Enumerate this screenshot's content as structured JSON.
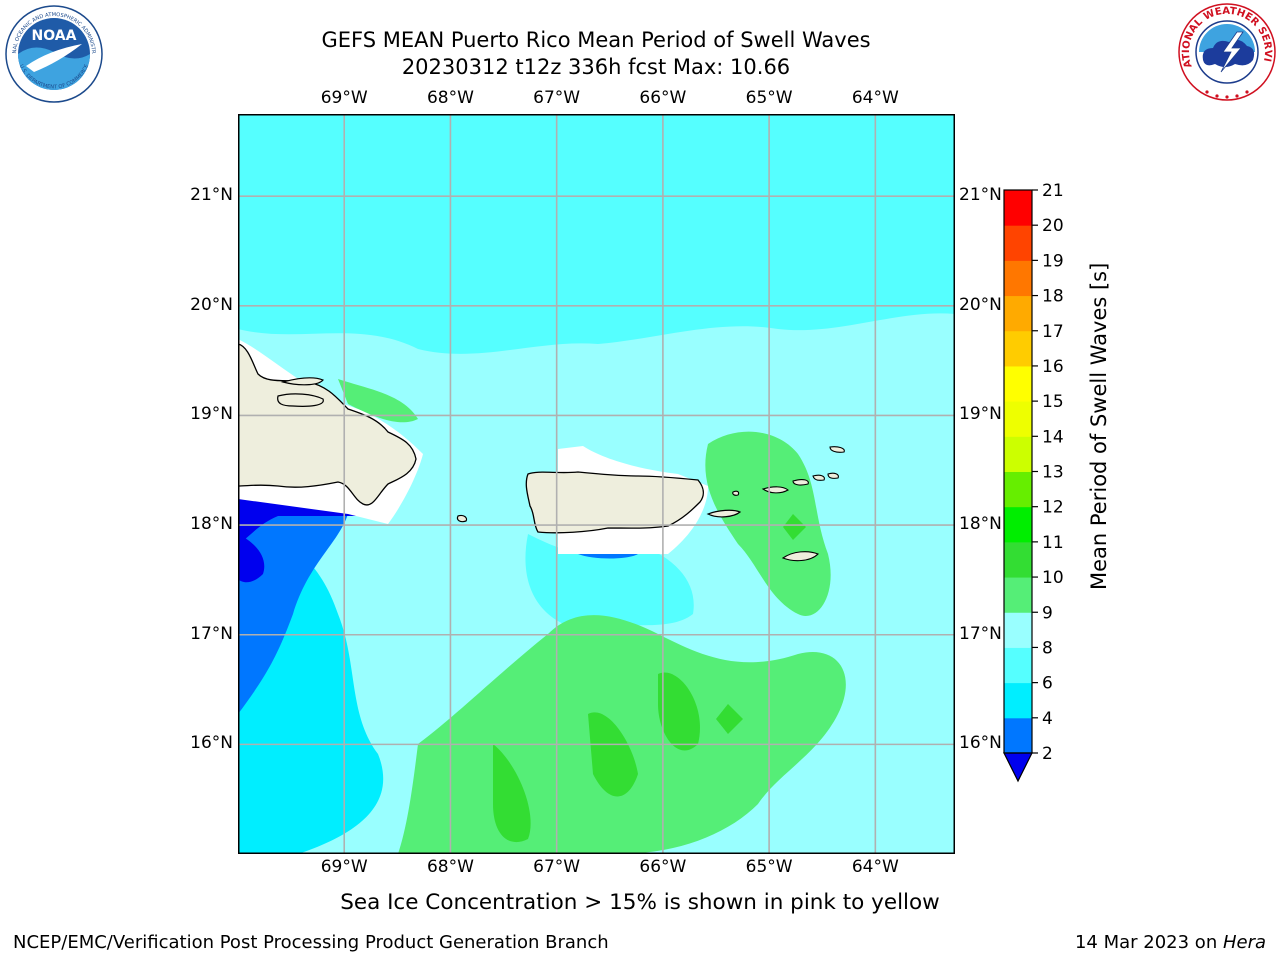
{
  "title": {
    "line1": "GEFS MEAN Puerto Rico Mean Period of Swell Waves",
    "line2": "20230312 t12z 336h fcst   Max: 10.66"
  },
  "logos": {
    "noaa_text": "NOAA",
    "noaa_ring_top": "NATIONAL OCEANIC AND ATMOSPHERIC ADMINISTRATION",
    "noaa_ring_bottom": "U.S. DEPARTMENT OF COMMERCE",
    "nws_ring": "NATIONAL WEATHER SERVICE"
  },
  "map": {
    "lon_ticks": [
      "69°W",
      "68°W",
      "67°W",
      "66°W",
      "65°W",
      "64°W"
    ],
    "lat_ticks": [
      "21°N",
      "20°N",
      "19°N",
      "18°N",
      "17°N",
      "16°N"
    ],
    "lon_values": [
      -69,
      -68,
      -67,
      -66,
      -65,
      -64
    ],
    "lat_values": [
      21,
      20,
      19,
      18,
      17,
      16
    ],
    "extent": {
      "lon_min": -70.0,
      "lon_max": -63.25,
      "lat_min": 15.0,
      "lat_max": 21.75
    },
    "land_color": "#eeeedd",
    "grid_color": "#b0b0b0"
  },
  "colorbar": {
    "label": "Mean Period of Swell Waves [s]",
    "ticks": [
      "2",
      "4",
      "6",
      "8",
      "9",
      "10",
      "11",
      "12",
      "13",
      "14",
      "15",
      "16",
      "17",
      "18",
      "19",
      "20",
      "21"
    ],
    "colors": [
      "#0000ee",
      "#0077ff",
      "#00eeff",
      "#55ffff",
      "#99ffff",
      "#55ee77",
      "#33dd33",
      "#00ee00",
      "#66ee00",
      "#ccff00",
      "#eeff00",
      "#ffff00",
      "#ffcc00",
      "#ffaa00",
      "#ff7700",
      "#ff4400",
      "#ff0000"
    ],
    "underflow_color": "#0000ee"
  },
  "caption": "Sea Ice Concentration > 15% is shown in pink to yellow",
  "footer": {
    "left": "NCEP/EMC/Verification Post Processing Product Generation Branch",
    "right_prefix": "14 Mar 2023 on ",
    "right_host": "Hera"
  }
}
